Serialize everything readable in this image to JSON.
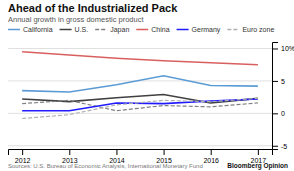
{
  "chart_data": {
    "type": "line",
    "title": "Ahead of the Industrialized Pack",
    "subtitle": "Annual growth in gross domestic product",
    "annotations": [
      "Sources: U.S. Bureau of Economic Analysis, International Monetary Fund",
      "Bloomberg Opinion"
    ],
    "x": [
      2012,
      2013,
      2014,
      2015,
      2016,
      2017
    ],
    "xlim": [
      2011.7,
      2017.3
    ],
    "xticks": [
      2012,
      2013,
      2014,
      2015,
      2016,
      2017
    ],
    "ylim": [
      -5.5,
      11
    ],
    "yticks": [
      -5,
      0,
      5,
      {
        "value": 10,
        "label": "10%"
      }
    ],
    "grid": true,
    "legend": "top",
    "series": [
      {
        "name": "California",
        "color": "#5b9bd5",
        "line_style": "solid",
        "values": [
          3.5,
          3.3,
          4.4,
          5.8,
          4.3,
          4.2
        ]
      },
      {
        "name": "U.S.",
        "color": "#404040",
        "line_style": "solid",
        "values": [
          2.2,
          1.8,
          2.4,
          2.9,
          1.6,
          2.3
        ]
      },
      {
        "name": "Japan",
        "color": "#808080",
        "line_style": "dashed",
        "values": [
          1.5,
          2.0,
          0.4,
          1.2,
          1.0,
          1.6
        ]
      },
      {
        "name": "China",
        "color": "#d95f5f",
        "line_style": "solid",
        "values": [
          9.5,
          9.0,
          8.5,
          8.1,
          7.8,
          7.5
        ]
      },
      {
        "name": "Germany",
        "color": "#1f1aff",
        "line_style": "solid",
        "values": [
          0.4,
          0.4,
          1.6,
          1.5,
          1.9,
          2.2
        ]
      },
      {
        "name": "Euro zone",
        "color": "#b0b0b0",
        "line_style": "dashed",
        "values": [
          -0.8,
          -0.2,
          1.3,
          2.0,
          1.8,
          2.3
        ]
      }
    ]
  }
}
